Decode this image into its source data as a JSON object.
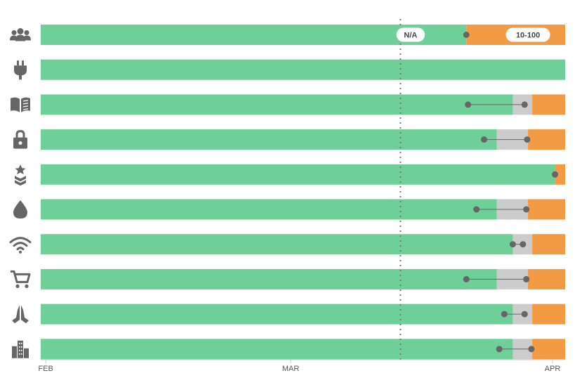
{
  "chart_data": {
    "type": "bar",
    "orientation": "horizontal-timeline",
    "title": "",
    "xlabel": "",
    "ylabel": "",
    "x_ticks": [
      "FEB",
      "MAR",
      "APR"
    ],
    "x_tick_days": [
      0,
      29,
      60
    ],
    "x_range_days": [
      -0.6,
      61.5
    ],
    "reference_line_day": 42,
    "colors": {
      "green": "#6ecf98",
      "grey": "#cccccc",
      "orange": "#f39a45",
      "marker": "#666666",
      "dotted": "#777777",
      "axis": "#cccccc"
    },
    "annotations": [
      {
        "text": "N/A",
        "day": 43.2,
        "row": 0
      },
      {
        "text": "10-100",
        "day": 57.1,
        "row": 0
      }
    ],
    "rows": [
      {
        "icon": "people-icon",
        "green_end": 49.8,
        "grey_end": 49.8,
        "dot1": 49.8,
        "dot2": null
      },
      {
        "icon": "plug-icon",
        "green_end": 61.5,
        "grey_end": 61.5,
        "dot1": null,
        "dot2": null
      },
      {
        "icon": "book-icon",
        "green_end": 55.3,
        "grey_end": 57.6,
        "dot1": 50.0,
        "dot2": 56.7
      },
      {
        "icon": "lock-icon",
        "green_end": 53.4,
        "grey_end": 57.1,
        "dot1": 51.9,
        "dot2": 57.0
      },
      {
        "icon": "medal-icon",
        "green_end": 60.3,
        "grey_end": 60.3,
        "dot1": 60.3,
        "dot2": null
      },
      {
        "icon": "drop-icon",
        "green_end": 53.4,
        "grey_end": 57.1,
        "dot1": 51.0,
        "dot2": 56.9
      },
      {
        "icon": "wifi-icon",
        "green_end": 55.3,
        "grey_end": 57.6,
        "dot1": 55.3,
        "dot2": 56.5
      },
      {
        "icon": "cart-icon",
        "green_end": 53.4,
        "grey_end": 57.1,
        "dot1": 49.8,
        "dot2": 56.9
      },
      {
        "icon": "praying-hands-icon",
        "green_end": 55.3,
        "grey_end": 57.6,
        "dot1": 54.3,
        "dot2": 56.7
      },
      {
        "icon": "city-icon",
        "green_end": 55.3,
        "grey_end": 57.6,
        "dot1": 53.7,
        "dot2": 57.5
      }
    ]
  }
}
